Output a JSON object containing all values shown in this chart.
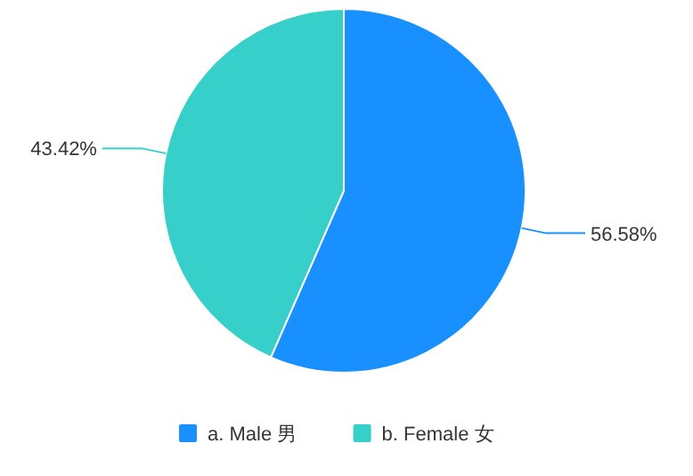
{
  "chart_data": {
    "type": "pie",
    "categories": [
      "a. Male 男",
      "b. Female 女"
    ],
    "values": [
      56.58,
      43.42
    ],
    "colors": [
      "#1890ff",
      "#36cfc9"
    ],
    "value_labels": [
      "56.58%",
      "43.42%"
    ],
    "legend": "bottom"
  }
}
